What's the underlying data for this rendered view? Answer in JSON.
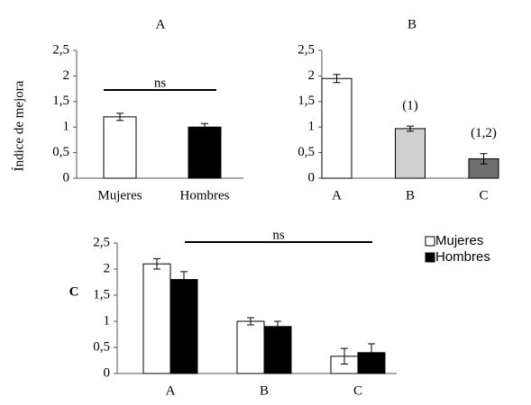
{
  "chart_data": [
    {
      "type": "bar",
      "title": "A",
      "y_label": "Índice de mejora",
      "categories": [
        "Mujeres",
        "Hombres"
      ],
      "values": [
        1.2,
        1.0
      ],
      "errors": [
        0.07,
        0.07
      ],
      "colors": [
        "#ffffff",
        "#000000"
      ],
      "annotation": "ns",
      "ylim": [
        0,
        2.5
      ],
      "yticks": [
        0,
        {
          "value": 0.5,
          "label": "0,5"
        },
        1,
        {
          "value": 1.5,
          "label": "1,5"
        },
        2,
        {
          "value": 2.5,
          "label": "2,5"
        }
      ]
    },
    {
      "type": "bar",
      "title": "B",
      "categories": [
        "A",
        "B",
        "C"
      ],
      "values": [
        1.95,
        0.97,
        0.38
      ],
      "errors": [
        0.08,
        0.05,
        0.1
      ],
      "colors": [
        "#ffffff",
        "#d0d0d0",
        "#6e6e6e"
      ],
      "value_annotations": [
        null,
        "(1)",
        "(1,2)"
      ],
      "ylim": [
        0,
        2.5
      ],
      "yticks": [
        0,
        {
          "value": 0.5,
          "label": "0,5"
        },
        1,
        {
          "value": 1.5,
          "label": "1,5"
        },
        2,
        {
          "value": 2.5,
          "label": "2,5"
        }
      ]
    },
    {
      "type": "grouped-bar",
      "title": "C",
      "annotation": "ns",
      "categories": [
        "A",
        "B",
        "C"
      ],
      "series": [
        {
          "name": "Mujeres",
          "color": "#ffffff",
          "values": [
            2.1,
            1.0,
            0.33
          ],
          "errors": [
            0.1,
            0.07,
            0.15
          ]
        },
        {
          "name": "Hombres",
          "color": "#000000",
          "values": [
            1.8,
            0.9,
            0.4
          ],
          "errors": [
            0.15,
            0.1,
            0.17
          ]
        }
      ],
      "ylim": [
        0,
        2.5
      ],
      "yticks": [
        0,
        {
          "value": 0.5,
          "label": "0,5"
        },
        1,
        {
          "value": 1.5,
          "label": "1,5"
        },
        2,
        {
          "value": 2.5,
          "label": "2,5"
        }
      ]
    }
  ]
}
